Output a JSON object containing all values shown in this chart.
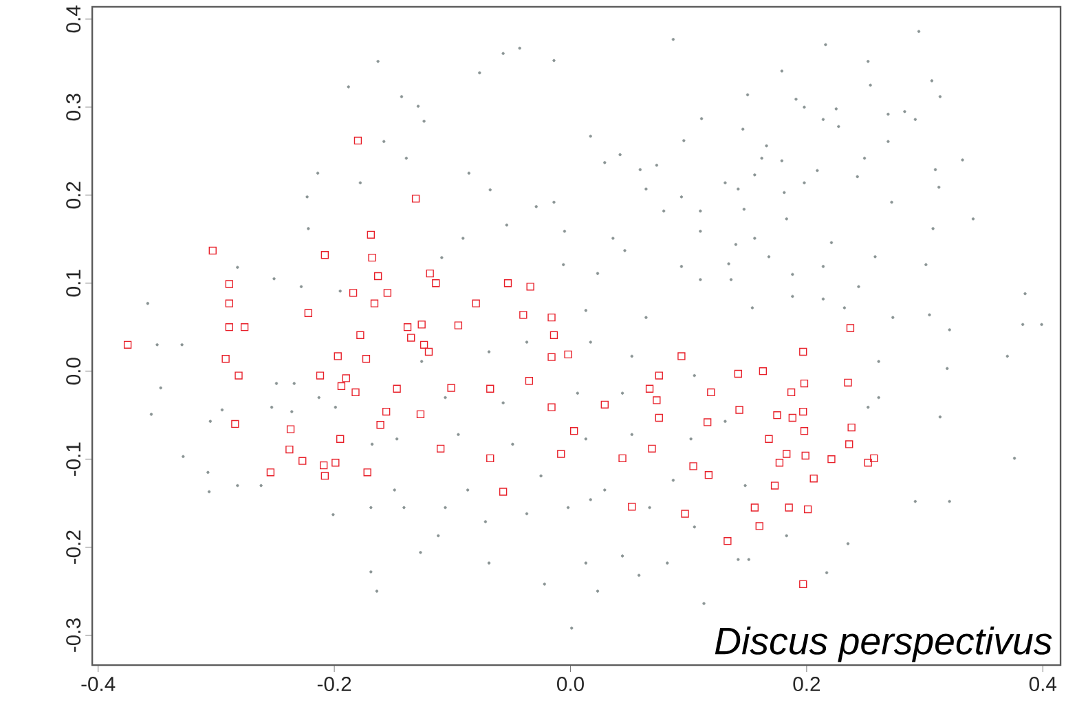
{
  "chart_data": {
    "type": "scatter",
    "xlim": [
      -0.405,
      0.415
    ],
    "ylim": [
      -0.334,
      0.414
    ],
    "xticks": [
      -0.4,
      -0.2,
      {
        "value": 0,
        "label": "0.0"
      },
      0.2,
      0.4
    ],
    "yticks": [
      -0.3,
      -0.2,
      -0.1,
      {
        "value": 0,
        "label": "0.0"
      },
      0.1,
      0.2,
      0.3,
      0.4
    ],
    "annotations": [
      "Discus perspectivus"
    ],
    "series": [
      {
        "color": "#8a9494",
        "marker": "circle",
        "x": [
          0.087,
          -0.043,
          -0.057,
          -0.014,
          -0.077,
          -0.143,
          -0.129,
          -0.124,
          -0.158,
          0.017,
          0.096,
          0.111,
          0.029,
          0.042,
          0.059,
          0.073,
          0.131,
          0.064,
          -0.086,
          -0.068,
          -0.029,
          -0.014,
          -0.054,
          -0.005,
          0.079,
          0.094,
          0.11,
          0.11,
          0.036,
          0.046,
          -0.091,
          -0.109,
          -0.006,
          0.023,
          0.094,
          0.11,
          0.013,
          0.064,
          -0.139,
          0.295,
          0.216,
          0.252,
          0.254,
          0.179,
          0.306,
          0.313,
          0.15,
          0.191,
          0.198,
          0.225,
          0.214,
          0.227,
          0.269,
          0.283,
          0.292,
          0.146,
          0.269,
          0.166,
          0.162,
          0.179,
          0.249,
          0.332,
          0.156,
          0.209,
          0.198,
          0.243,
          0.309,
          0.142,
          0.312,
          0.181,
          0.272,
          0.147,
          0.183,
          0.307,
          0.341,
          0.156,
          0.14,
          0.221,
          0.168,
          0.258,
          0.134,
          0.214,
          0.301,
          0.188,
          0.136,
          0.244,
          0.188,
          0.214,
          0.154,
          0.232,
          0.273,
          0.304,
          0.385,
          0.383,
          0.321,
          -0.188,
          -0.163,
          -0.214,
          -0.223,
          -0.178,
          -0.222,
          -0.282,
          -0.358,
          -0.228,
          -0.195,
          -0.251,
          -0.35,
          -0.329,
          -0.347,
          -0.355,
          -0.328,
          -0.307,
          -0.306,
          -0.282,
          -0.262,
          -0.305,
          -0.295,
          -0.253,
          -0.236,
          -0.201,
          -0.169,
          -0.169,
          -0.164,
          -0.249,
          -0.234,
          -0.213,
          -0.199,
          -0.168,
          -0.127,
          -0.112,
          -0.069,
          -0.022,
          0.013,
          0.023,
          0.044,
          0.058,
          0.082,
          0.113,
          0.001,
          -0.106,
          -0.072,
          -0.037,
          -0.002,
          0.017,
          0.067,
          0.105,
          -0.141,
          -0.149,
          -0.087,
          -0.025,
          0.029,
          0.087,
          -0.147,
          -0.095,
          -0.049,
          0.013,
          0.052,
          0.102,
          -0.106,
          -0.057,
          0.006,
          0.044,
          0.105,
          -0.069,
          -0.037,
          0.017,
          0.052,
          -0.126,
          0.37,
          0.319,
          0.313,
          0.376,
          0.292,
          0.321,
          0.235,
          0.217,
          0.261,
          0.261,
          0.252,
          0.142,
          0.151,
          0.183,
          0.131,
          0.148,
          0.399
        ],
        "values": [
          0.377,
          0.367,
          0.361,
          0.353,
          0.339,
          0.312,
          0.301,
          0.284,
          0.261,
          0.267,
          0.262,
          0.287,
          0.237,
          0.246,
          0.229,
          0.234,
          0.214,
          0.207,
          0.225,
          0.206,
          0.187,
          0.192,
          0.166,
          0.159,
          0.182,
          0.198,
          0.182,
          0.159,
          0.151,
          0.137,
          0.151,
          0.129,
          0.121,
          0.111,
          0.119,
          0.104,
          0.069,
          0.061,
          0.242,
          0.386,
          0.371,
          0.352,
          0.325,
          0.341,
          0.33,
          0.312,
          0.314,
          0.309,
          0.3,
          0.298,
          0.286,
          0.278,
          0.292,
          0.295,
          0.286,
          0.275,
          0.261,
          0.256,
          0.242,
          0.239,
          0.242,
          0.24,
          0.223,
          0.228,
          0.214,
          0.221,
          0.229,
          0.207,
          0.209,
          0.203,
          0.192,
          0.184,
          0.173,
          0.162,
          0.173,
          0.151,
          0.144,
          0.146,
          0.13,
          0.13,
          0.122,
          0.119,
          0.121,
          0.11,
          0.104,
          0.096,
          0.085,
          0.082,
          0.072,
          0.072,
          0.061,
          0.064,
          0.088,
          0.053,
          0.047,
          0.323,
          0.352,
          0.225,
          0.198,
          0.214,
          0.162,
          0.118,
          0.077,
          0.096,
          0.091,
          0.105,
          0.03,
          0.03,
          -0.019,
          -0.049,
          -0.097,
          -0.115,
          -0.137,
          -0.13,
          -0.13,
          -0.057,
          -0.044,
          -0.041,
          -0.046,
          -0.163,
          -0.155,
          -0.228,
          -0.25,
          -0.014,
          -0.014,
          -0.03,
          -0.041,
          -0.083,
          -0.206,
          -0.187,
          -0.218,
          -0.242,
          -0.218,
          -0.25,
          -0.21,
          -0.232,
          -0.218,
          -0.264,
          -0.292,
          -0.155,
          -0.171,
          -0.162,
          -0.155,
          -0.146,
          -0.155,
          -0.177,
          -0.155,
          -0.135,
          -0.135,
          -0.119,
          -0.135,
          -0.124,
          -0.077,
          -0.072,
          -0.083,
          -0.077,
          -0.072,
          -0.077,
          -0.03,
          -0.036,
          -0.025,
          -0.025,
          -0.005,
          0.022,
          0.033,
          0.033,
          0.017,
          0.011,
          0.017,
          0.003,
          -0.052,
          -0.099,
          -0.148,
          -0.148,
          -0.196,
          -0.229,
          0.011,
          -0.03,
          -0.041,
          -0.214,
          -0.214,
          -0.187,
          -0.057,
          -0.13,
          0.053
        ]
      },
      {
        "color": "#e8202a",
        "marker": "square",
        "x": [
          -0.375,
          -0.303,
          -0.289,
          -0.289,
          -0.289,
          -0.276,
          -0.292,
          -0.281,
          -0.284,
          -0.254,
          -0.238,
          -0.237,
          -0.227,
          -0.222,
          -0.208,
          -0.212,
          -0.209,
          -0.208,
          -0.199,
          -0.195,
          -0.197,
          -0.194,
          -0.19,
          -0.184,
          -0.178,
          -0.18,
          -0.173,
          -0.172,
          -0.169,
          -0.168,
          -0.163,
          -0.166,
          -0.161,
          -0.156,
          -0.182,
          -0.155,
          -0.138,
          -0.126,
          -0.135,
          -0.124,
          -0.12,
          -0.131,
          -0.119,
          -0.114,
          -0.147,
          -0.127,
          -0.11,
          -0.101,
          -0.095,
          -0.08,
          -0.068,
          -0.068,
          -0.057,
          -0.053,
          -0.04,
          -0.034,
          -0.016,
          -0.014,
          -0.035,
          -0.016,
          -0.002,
          -0.016,
          0.003,
          -0.008,
          0.029,
          0.044,
          0.052,
          0.069,
          0.067,
          0.073,
          0.075,
          0.075,
          0.094,
          0.119,
          0.116,
          0.104,
          0.117,
          0.097,
          0.133,
          0.142,
          0.163,
          0.197,
          0.237,
          0.198,
          0.187,
          0.235,
          0.143,
          0.175,
          0.188,
          0.197,
          0.198,
          0.168,
          0.238,
          0.236,
          0.183,
          0.199,
          0.177,
          0.221,
          0.252,
          0.257,
          0.206,
          0.173,
          0.156,
          0.185,
          0.201,
          0.16,
          0.197
        ],
        "values": [
          0.03,
          0.137,
          0.099,
          0.077,
          0.05,
          0.05,
          0.014,
          -0.005,
          -0.06,
          -0.115,
          -0.089,
          -0.066,
          -0.102,
          0.066,
          0.132,
          -0.005,
          -0.107,
          -0.119,
          -0.104,
          -0.077,
          0.017,
          -0.017,
          -0.008,
          0.089,
          0.041,
          0.262,
          0.014,
          -0.115,
          0.155,
          0.129,
          0.108,
          0.077,
          -0.061,
          -0.046,
          -0.024,
          0.089,
          0.05,
          0.053,
          0.038,
          0.03,
          0.022,
          0.196,
          0.111,
          0.1,
          -0.02,
          -0.049,
          -0.088,
          -0.019,
          0.052,
          0.077,
          -0.02,
          -0.099,
          -0.137,
          0.1,
          0.064,
          0.096,
          0.061,
          0.041,
          -0.011,
          0.016,
          0.019,
          -0.041,
          -0.068,
          -0.094,
          -0.038,
          -0.099,
          -0.154,
          -0.088,
          -0.02,
          -0.033,
          -0.053,
          -0.005,
          0.017,
          -0.024,
          -0.058,
          -0.108,
          -0.118,
          -0.162,
          -0.193,
          -0.003,
          0.0,
          0.022,
          0.049,
          -0.014,
          -0.024,
          -0.013,
          -0.044,
          -0.05,
          -0.053,
          -0.046,
          -0.068,
          -0.077,
          -0.064,
          -0.083,
          -0.094,
          -0.096,
          -0.104,
          -0.1,
          -0.104,
          -0.099,
          -0.122,
          -0.13,
          -0.155,
          -0.155,
          -0.157,
          -0.176,
          -0.242
        ]
      }
    ]
  }
}
